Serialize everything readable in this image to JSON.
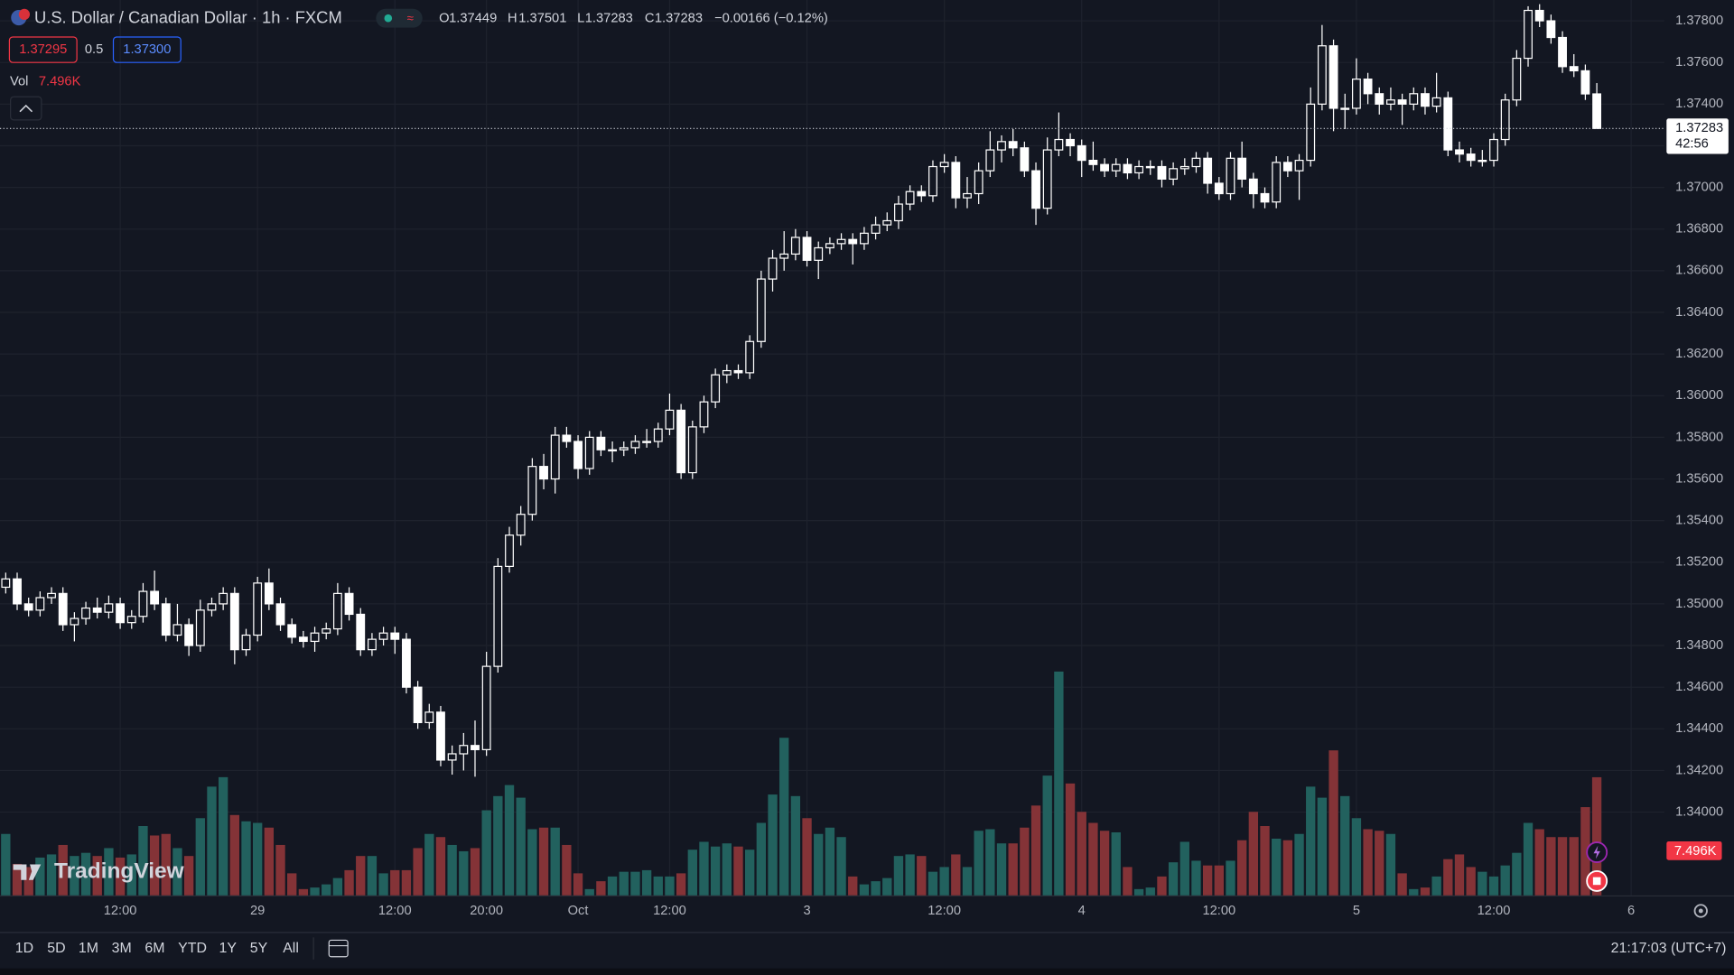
{
  "header": {
    "symbol": "U.S. Dollar / Canadian Dollar · 1h · FXCM",
    "ohlc_labels": [
      "O",
      "H",
      "L",
      "C"
    ],
    "change": "−0.00166 (−0.12%)",
    "bid": "1.37295",
    "spread": "0.5",
    "ask": "1.37300",
    "vol_label": "Vol"
  },
  "chart_data": {
    "type": "candlestick",
    "open": [
      1.3508,
      1.3512,
      1.35,
      1.3497,
      1.3503,
      1.3505,
      1.349,
      1.3493,
      1.3498,
      1.3496,
      1.35,
      1.3491,
      1.3494,
      1.3506,
      1.35,
      1.3485,
      1.349,
      1.348,
      1.3497,
      1.35,
      1.3505,
      1.3478,
      1.3485,
      1.351,
      1.35,
      1.349,
      1.3484,
      1.3482,
      1.3486,
      1.3488,
      1.3505,
      1.3495,
      1.3478,
      1.3483,
      1.3486,
      1.3483,
      1.346,
      1.3443,
      1.3448,
      1.3425,
      1.3428,
      1.3432,
      1.343,
      1.347,
      1.3518,
      1.3533,
      1.3543,
      1.3566,
      1.356,
      1.3581,
      1.3578,
      1.3565,
      1.358,
      1.3574,
      1.3574,
      1.3575,
      1.3578,
      1.3578,
      1.3584,
      1.3593,
      1.3563,
      1.3585,
      1.3597,
      1.361,
      1.3612,
      1.3611,
      1.3626,
      1.3656,
      1.3666,
      1.3668,
      1.3676,
      1.3665,
      1.3671,
      1.3673,
      1.3675,
      1.3673,
      1.3678,
      1.3682,
      1.3684,
      1.3692,
      1.3698,
      1.3696,
      1.371,
      1.3712,
      1.3695,
      1.3697,
      1.3708,
      1.3718,
      1.3722,
      1.3719,
      1.3708,
      1.369,
      1.3718,
      1.3723,
      1.372,
      1.3713,
      1.3711,
      1.3708,
      1.3711,
      1.3707,
      1.371,
      1.371,
      1.3704,
      1.3709,
      1.371,
      1.3714,
      1.3702,
      1.3697,
      1.3714,
      1.3704,
      1.3697,
      1.3693,
      1.3712,
      1.3708,
      1.3713,
      1.374,
      1.3768,
      1.3738,
      1.3738,
      1.3752,
      1.3745,
      1.374,
      1.3742,
      1.374,
      1.3745,
      1.3739,
      1.3743,
      1.3718,
      1.3716,
      1.3713,
      1.3713,
      1.3723,
      1.3742,
      1.3762,
      1.3785,
      1.378,
      1.3772,
      1.3758,
      1.3756,
      1.37449
    ],
    "high": [
      1.3515,
      1.3515,
      1.3503,
      1.3506,
      1.3508,
      1.3508,
      1.3496,
      1.3501,
      1.3503,
      1.3504,
      1.3503,
      1.3497,
      1.351,
      1.3516,
      1.3503,
      1.35,
      1.3493,
      1.3502,
      1.3503,
      1.3508,
      1.3508,
      1.3488,
      1.3513,
      1.3517,
      1.3503,
      1.3493,
      1.3487,
      1.3489,
      1.3491,
      1.351,
      1.3508,
      1.3498,
      1.3486,
      1.3489,
      1.3489,
      1.3486,
      1.3463,
      1.3452,
      1.3451,
      1.3432,
      1.3438,
      1.3444,
      1.3477,
      1.3522,
      1.3537,
      1.3547,
      1.357,
      1.3572,
      1.3585,
      1.3585,
      1.3581,
      1.3583,
      1.3583,
      1.3578,
      1.3578,
      1.3581,
      1.3584,
      1.3587,
      1.3601,
      1.3596,
      1.3588,
      1.36,
      1.3613,
      1.3615,
      1.3615,
      1.3629,
      1.366,
      1.367,
      1.3679,
      1.368,
      1.3679,
      1.3674,
      1.3676,
      1.3678,
      1.3678,
      1.3681,
      1.3686,
      1.3688,
      1.3696,
      1.3701,
      1.3701,
      1.3713,
      1.3716,
      1.3715,
      1.3705,
      1.3712,
      1.3727,
      1.3725,
      1.3728,
      1.3722,
      1.3712,
      1.3724,
      1.3736,
      1.3726,
      1.3723,
      1.3722,
      1.3714,
      1.3714,
      1.3714,
      1.3713,
      1.3713,
      1.3713,
      1.3712,
      1.3714,
      1.3717,
      1.3717,
      1.3705,
      1.3717,
      1.3722,
      1.3707,
      1.37,
      1.3715,
      1.3715,
      1.3716,
      1.3748,
      1.3778,
      1.3771,
      1.3745,
      1.3762,
      1.3755,
      1.3748,
      1.3748,
      1.3745,
      1.3748,
      1.3748,
      1.3755,
      1.3746,
      1.3722,
      1.3719,
      1.3718,
      1.3726,
      1.3745,
      1.3766,
      1.3787,
      1.3788,
      1.3783,
      1.3775,
      1.3764,
      1.3759,
      1.37501
    ],
    "low": [
      1.3505,
      1.3497,
      1.3494,
      1.3494,
      1.35,
      1.3487,
      1.3482,
      1.349,
      1.3493,
      1.3493,
      1.3488,
      1.3488,
      1.3491,
      1.3497,
      1.3482,
      1.3482,
      1.3475,
      1.3477,
      1.3494,
      1.3497,
      1.3471,
      1.3475,
      1.3482,
      1.3497,
      1.3487,
      1.3481,
      1.3479,
      1.3477,
      1.3483,
      1.3485,
      1.3492,
      1.3475,
      1.3475,
      1.348,
      1.3476,
      1.3457,
      1.344,
      1.344,
      1.3422,
      1.3418,
      1.342,
      1.3417,
      1.3427,
      1.3467,
      1.3515,
      1.3528,
      1.354,
      1.3555,
      1.3553,
      1.3575,
      1.356,
      1.3562,
      1.3571,
      1.3568,
      1.3571,
      1.3572,
      1.3575,
      1.3575,
      1.3581,
      1.356,
      1.356,
      1.3582,
      1.3594,
      1.3606,
      1.3608,
      1.3608,
      1.3623,
      1.365,
      1.366,
      1.3665,
      1.3662,
      1.3656,
      1.3668,
      1.367,
      1.3663,
      1.367,
      1.3675,
      1.3679,
      1.368,
      1.3689,
      1.3693,
      1.3693,
      1.3707,
      1.369,
      1.369,
      1.3692,
      1.3705,
      1.3712,
      1.3715,
      1.3705,
      1.3682,
      1.3687,
      1.3715,
      1.3715,
      1.3705,
      1.3708,
      1.3705,
      1.3705,
      1.3704,
      1.3704,
      1.3706,
      1.37,
      1.3701,
      1.3706,
      1.3707,
      1.3697,
      1.3694,
      1.3694,
      1.37,
      1.369,
      1.369,
      1.369,
      1.3705,
      1.3694,
      1.371,
      1.3737,
      1.3727,
      1.3728,
      1.3735,
      1.374,
      1.3735,
      1.3737,
      1.373,
      1.3737,
      1.3735,
      1.3736,
      1.3715,
      1.3712,
      1.371,
      1.371,
      1.371,
      1.372,
      1.3739,
      1.3758,
      1.3777,
      1.3769,
      1.3755,
      1.3753,
      1.3742,
      1.37283
    ],
    "close": [
      1.3512,
      1.35,
      1.3497,
      1.3503,
      1.3505,
      1.349,
      1.3493,
      1.3498,
      1.3496,
      1.35,
      1.3491,
      1.3494,
      1.3506,
      1.35,
      1.3485,
      1.349,
      1.348,
      1.3497,
      1.35,
      1.3505,
      1.3478,
      1.3485,
      1.351,
      1.35,
      1.349,
      1.3484,
      1.3482,
      1.3486,
      1.3488,
      1.3505,
      1.3495,
      1.3478,
      1.3483,
      1.3486,
      1.3483,
      1.346,
      1.3443,
      1.3448,
      1.3425,
      1.3428,
      1.3432,
      1.343,
      1.347,
      1.3518,
      1.3533,
      1.3543,
      1.3566,
      1.356,
      1.3581,
      1.3578,
      1.3565,
      1.358,
      1.3574,
      1.3574,
      1.3575,
      1.3578,
      1.3578,
      1.3584,
      1.3593,
      1.3563,
      1.3585,
      1.3597,
      1.361,
      1.3612,
      1.3611,
      1.3626,
      1.3656,
      1.3666,
      1.3668,
      1.3676,
      1.3665,
      1.3671,
      1.3673,
      1.3675,
      1.3673,
      1.3678,
      1.3682,
      1.3684,
      1.3692,
      1.3698,
      1.3696,
      1.371,
      1.3712,
      1.3695,
      1.3697,
      1.3708,
      1.3718,
      1.3722,
      1.3719,
      1.3708,
      1.369,
      1.3718,
      1.3723,
      1.372,
      1.3713,
      1.3711,
      1.3708,
      1.3711,
      1.3707,
      1.371,
      1.371,
      1.3704,
      1.3709,
      1.371,
      1.3714,
      1.3702,
      1.3697,
      1.3714,
      1.3704,
      1.3697,
      1.3693,
      1.3712,
      1.3708,
      1.3713,
      1.374,
      1.3768,
      1.3738,
      1.3738,
      1.3752,
      1.3745,
      1.374,
      1.3742,
      1.374,
      1.3745,
      1.3739,
      1.3743,
      1.3718,
      1.3716,
      1.3713,
      1.3713,
      1.3723,
      1.3742,
      1.3762,
      1.3785,
      1.378,
      1.3772,
      1.3758,
      1.3756,
      1.37449,
      1.37283
    ],
    "volume": [
      3.9,
      2.0,
      1.8,
      2.4,
      2.6,
      3.2,
      2.5,
      2.7,
      2.5,
      3.0,
      2.4,
      2.6,
      4.4,
      3.8,
      3.9,
      3.0,
      2.5,
      4.9,
      6.9,
      7.5,
      5.1,
      4.7,
      4.6,
      4.3,
      3.2,
      1.4,
      0.4,
      0.5,
      0.7,
      1.1,
      1.6,
      2.5,
      2.5,
      1.4,
      1.6,
      1.6,
      3.0,
      3.9,
      3.7,
      3.2,
      2.8,
      3.0,
      5.4,
      6.3,
      7.0,
      6.2,
      4.2,
      4.3,
      4.3,
      3.2,
      1.4,
      0.4,
      0.9,
      1.2,
      1.5,
      1.5,
      1.6,
      1.2,
      1.2,
      1.4,
      2.9,
      3.4,
      3.1,
      3.3,
      3.1,
      2.9,
      4.6,
      6.4,
      10.0,
      6.3,
      4.9,
      3.9,
      4.3,
      3.7,
      1.2,
      0.7,
      0.9,
      1.1,
      2.5,
      2.6,
      2.5,
      1.5,
      1.8,
      2.6,
      1.8,
      4.1,
      4.2,
      3.3,
      3.3,
      4.3,
      5.7,
      7.6,
      14.2,
      7.1,
      5.3,
      4.6,
      4.1,
      4.0,
      1.8,
      0.4,
      0.5,
      1.2,
      2.1,
      3.4,
      2.2,
      1.9,
      1.9,
      2.2,
      3.5,
      5.3,
      4.4,
      3.6,
      3.5,
      3.9,
      6.9,
      6.2,
      9.2,
      6.3,
      4.9,
      4.2,
      4.1,
      3.9,
      1.4,
      0.4,
      0.5,
      1.2,
      2.3,
      2.6,
      1.8,
      1.5,
      1.2,
      1.9,
      2.7,
      4.6,
      4.2,
      3.7,
      3.7,
      3.7,
      5.6,
      7.496
    ],
    "volume_label": "7.496K",
    "countdown": "42:56",
    "up_color": "#ffffff",
    "down_color": "#ffffff",
    "volume_up_color": "#22615e",
    "volume_down_color": "#843337",
    "xlim": [
      -0.5,
      144.9
    ],
    "xticks": [
      {
        "value": 10,
        "label": "12:00"
      },
      {
        "value": 22,
        "label": "29"
      },
      {
        "value": 34,
        "label": "12:00"
      },
      {
        "value": 42,
        "label": "20:00"
      },
      {
        "value": 50,
        "label": "Oct"
      },
      {
        "value": 58,
        "label": "12:00"
      },
      {
        "value": 70,
        "label": "3"
      },
      {
        "value": 82,
        "label": "12:00"
      },
      {
        "value": 94,
        "label": "4"
      },
      {
        "value": 106,
        "label": "12:00"
      },
      {
        "value": 118,
        "label": "5"
      },
      {
        "value": 130,
        "label": "12:00"
      },
      {
        "value": 142,
        "label": "6"
      }
    ],
    "ylim": [
      1.336,
      1.379
    ],
    "yticks": [
      {
        "value": 1.34,
        "label": "1.34000"
      },
      {
        "value": 1.342,
        "label": "1.34200"
      },
      {
        "value": 1.344,
        "label": "1.34400"
      },
      {
        "value": 1.346,
        "label": "1.34600"
      },
      {
        "value": 1.348,
        "label": "1.34800"
      },
      {
        "value": 1.35,
        "label": "1.35000"
      },
      {
        "value": 1.352,
        "label": "1.35200"
      },
      {
        "value": 1.354,
        "label": "1.35400"
      },
      {
        "value": 1.356,
        "label": "1.35600"
      },
      {
        "value": 1.358,
        "label": "1.35800"
      },
      {
        "value": 1.36,
        "label": "1.36000"
      },
      {
        "value": 1.362,
        "label": "1.36200"
      },
      {
        "value": 1.364,
        "label": "1.36400"
      },
      {
        "value": 1.366,
        "label": "1.36600"
      },
      {
        "value": 1.368,
        "label": "1.36800"
      },
      {
        "value": 1.37,
        "label": "1.37000"
      },
      {
        "value": 1.372,
        "label": "1.37200"
      },
      {
        "value": 1.374,
        "label": "1.37400"
      },
      {
        "value": 1.376,
        "label": "1.37600"
      },
      {
        "value": 1.378,
        "label": "1.37800"
      }
    ],
    "grid": true
  },
  "footer": {
    "ranges": [
      "1D",
      "5D",
      "1M",
      "3M",
      "6M",
      "YTD",
      "1Y",
      "5Y",
      "All"
    ],
    "clock": "21:17:03 (UTC+7)",
    "logo": "TradingView"
  }
}
